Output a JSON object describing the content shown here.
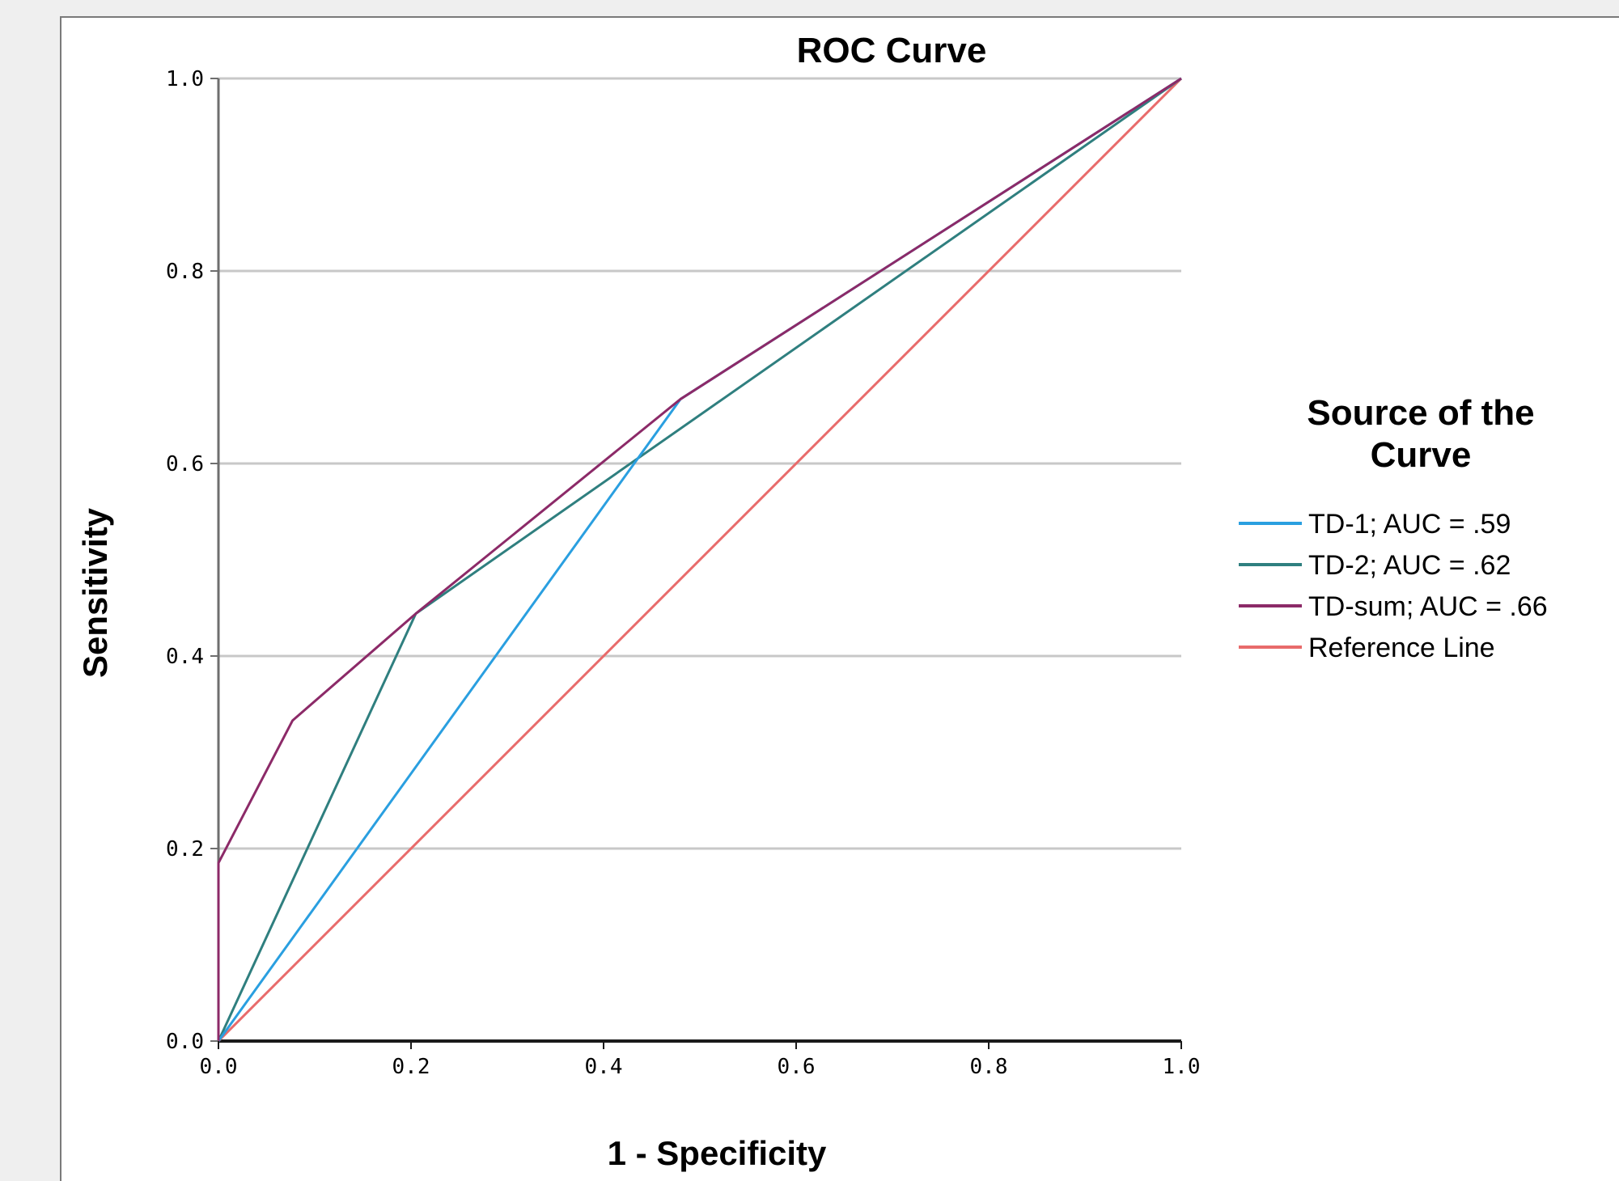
{
  "chart_data": {
    "type": "line",
    "title": "ROC Curve",
    "xlabel": "1 - Specificity",
    "ylabel": "Sensitivity",
    "xlim": [
      0,
      1
    ],
    "ylim": [
      0,
      1
    ],
    "x_ticks": [
      "0.0",
      "0.2",
      "0.4",
      "0.6",
      "0.8",
      "1.0"
    ],
    "y_ticks": [
      "0.0",
      "0.2",
      "0.4",
      "0.6",
      "0.8",
      "1.0"
    ],
    "grid": "horizontal",
    "legend_title_lines": [
      "Source of the",
      "Curve"
    ],
    "legend_position": "right",
    "series": [
      {
        "name": "TD-1; AUC = .59",
        "color": "#2a9fe0",
        "x": [
          0,
          0.48,
          1
        ],
        "y": [
          0,
          0.667,
          1
        ]
      },
      {
        "name": "TD-2; AUC = .62",
        "color": "#2f7f7f",
        "x": [
          0,
          0.205,
          1
        ],
        "y": [
          0,
          0.444,
          1
        ]
      },
      {
        "name": "TD-sum; AUC = .66",
        "color": "#8c2a68",
        "x": [
          0,
          0,
          0.077,
          0.205,
          0.48,
          1
        ],
        "y": [
          0,
          0.185,
          0.333,
          0.444,
          0.667,
          1
        ]
      },
      {
        "name": "Reference Line",
        "color": "#e86b6b",
        "x": [
          0,
          1
        ],
        "y": [
          0,
          1
        ]
      }
    ]
  }
}
